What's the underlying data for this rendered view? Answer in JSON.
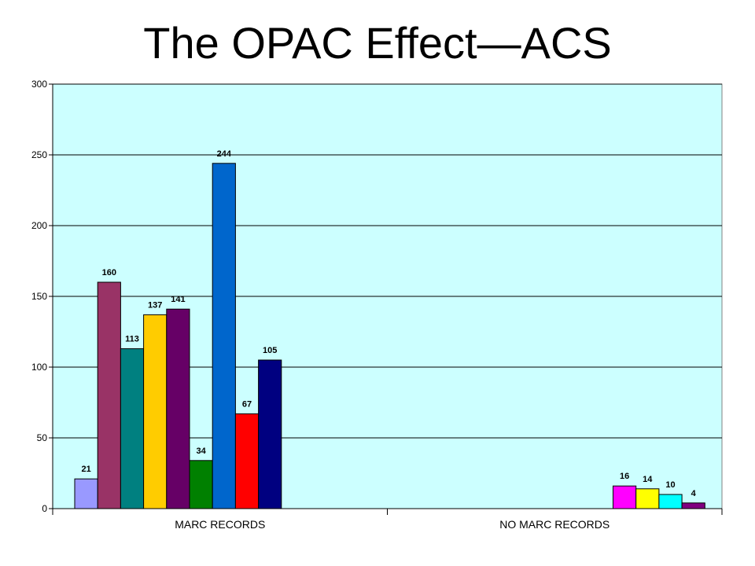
{
  "title": "The OPAC Effect—ACS",
  "colors": {
    "plot_background": "#CCFFFF",
    "gridline": "#000000"
  },
  "chart_data": {
    "type": "bar",
    "title": "",
    "xlabel": "",
    "ylabel": "",
    "ylim": [
      0,
      300
    ],
    "y_ticks": [
      0,
      50,
      100,
      150,
      200,
      250,
      300
    ],
    "grid": true,
    "groups": [
      {
        "label": "MARC RECORDS",
        "bars": [
          {
            "value": 21,
            "color": "#9999FF"
          },
          {
            "value": 160,
            "color": "#993366"
          },
          {
            "value": 113,
            "color": "#008080"
          },
          {
            "value": 137,
            "color": "#FFCC00"
          },
          {
            "value": 141,
            "color": "#660066"
          },
          {
            "value": 34,
            "color": "#008000"
          },
          {
            "value": 244,
            "color": "#0066CC"
          },
          {
            "value": 67,
            "color": "#FF0000"
          },
          {
            "value": 105,
            "color": "#000080"
          }
        ]
      },
      {
        "label": "NO MARC RECORDS",
        "bars": [
          {
            "value": 16,
            "color": "#FF00FF"
          },
          {
            "value": 14,
            "color": "#FFFF00"
          },
          {
            "value": 10,
            "color": "#00FFFF"
          },
          {
            "value": 4,
            "color": "#800080"
          }
        ]
      }
    ]
  }
}
